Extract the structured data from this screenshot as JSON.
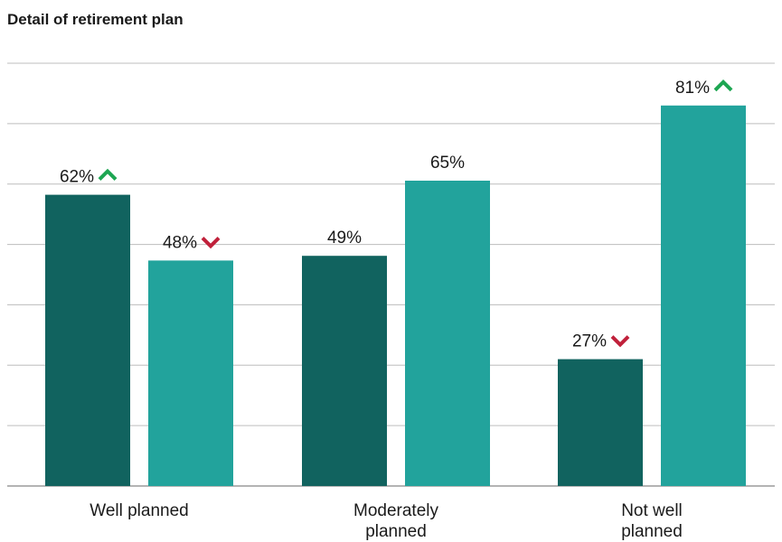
{
  "chart_data": {
    "type": "bar",
    "title": "Detail of retirement plan",
    "categories": [
      "Well planned",
      "Moderately planned",
      "Not well planned"
    ],
    "category_lines": [
      [
        "Well planned"
      ],
      [
        "Moderately",
        "planned"
      ],
      [
        "Not well",
        "planned"
      ]
    ],
    "series": [
      {
        "color": "#11635F",
        "values": [
          62,
          49,
          27
        ],
        "trend": [
          "up",
          "none",
          "down"
        ]
      },
      {
        "color": "#22A39C",
        "values": [
          48,
          65,
          81
        ],
        "trend": [
          "down",
          "none",
          "up"
        ]
      }
    ],
    "value_suffix": "%",
    "ylim": [
      0,
      90
    ],
    "grid": true,
    "legend": "none",
    "trend_colors": {
      "up": "#1DA652",
      "down": "#C0203A"
    }
  }
}
